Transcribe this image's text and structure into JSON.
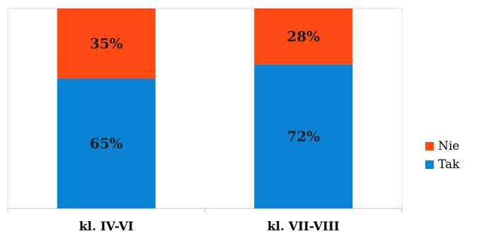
{
  "chart_data": {
    "type": "bar",
    "stacked": true,
    "percent": true,
    "categories": [
      "kl. IV-VI",
      "kl. VII-VIII"
    ],
    "series": [
      {
        "name": "Tak",
        "values": [
          65,
          72
        ],
        "labels": [
          "65%",
          "72%"
        ],
        "color": "#0a84d4"
      },
      {
        "name": "Nie",
        "values": [
          35,
          28
        ],
        "labels": [
          "35%",
          "28%"
        ],
        "color": "#ff4a14"
      }
    ],
    "ylim": [
      0,
      100
    ],
    "legend_position": "right",
    "grid": false
  }
}
